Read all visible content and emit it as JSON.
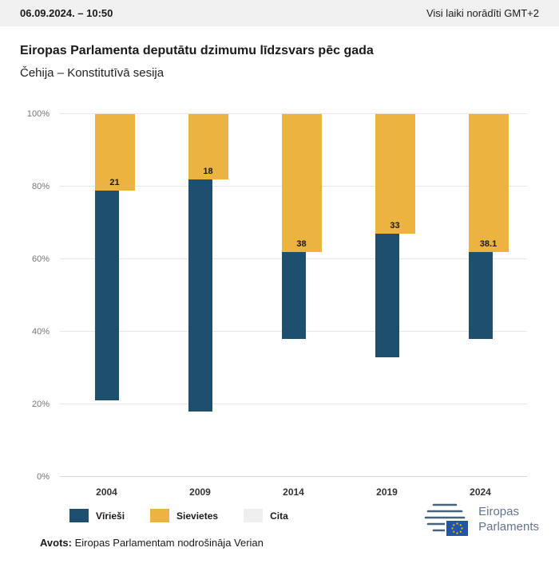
{
  "topbar": {
    "datetime": "06.09.2024. – 10:50",
    "timezone_note": "Visi laiki norādīti GMT+2"
  },
  "title": "Eiropas Parlamenta deputātu dzimumu līdzsvars pēc gada",
  "subtitle": "Čehija – Konstitutīvā sesija",
  "chart_data": {
    "type": "bar",
    "stacked": true,
    "stack_unit": "percent",
    "categories": [
      "2004",
      "2009",
      "2014",
      "2019",
      "2024"
    ],
    "series": [
      {
        "name": "Vīrieši",
        "color": "#1d4f6e",
        "values": [
          79,
          82,
          62,
          67,
          61.9
        ]
      },
      {
        "name": "Sievietes",
        "color": "#ebb440",
        "values": [
          21,
          18,
          38,
          33,
          38.1
        ]
      },
      {
        "name": "Cita",
        "color": "#efefef",
        "values": [
          0,
          0,
          0,
          0,
          0
        ]
      }
    ],
    "ylim": [
      0,
      100
    ],
    "yticks": [
      "0%",
      "20%",
      "40%",
      "60%",
      "80%",
      "100%"
    ],
    "grid": true,
    "legend_position": "bottom"
  },
  "footer": {
    "source_label": "Avots:",
    "source_text": "Eiropas Parlamentam nodrošināja Verian"
  },
  "logo": {
    "line1": "Eiropas",
    "line2": "Parlaments"
  }
}
